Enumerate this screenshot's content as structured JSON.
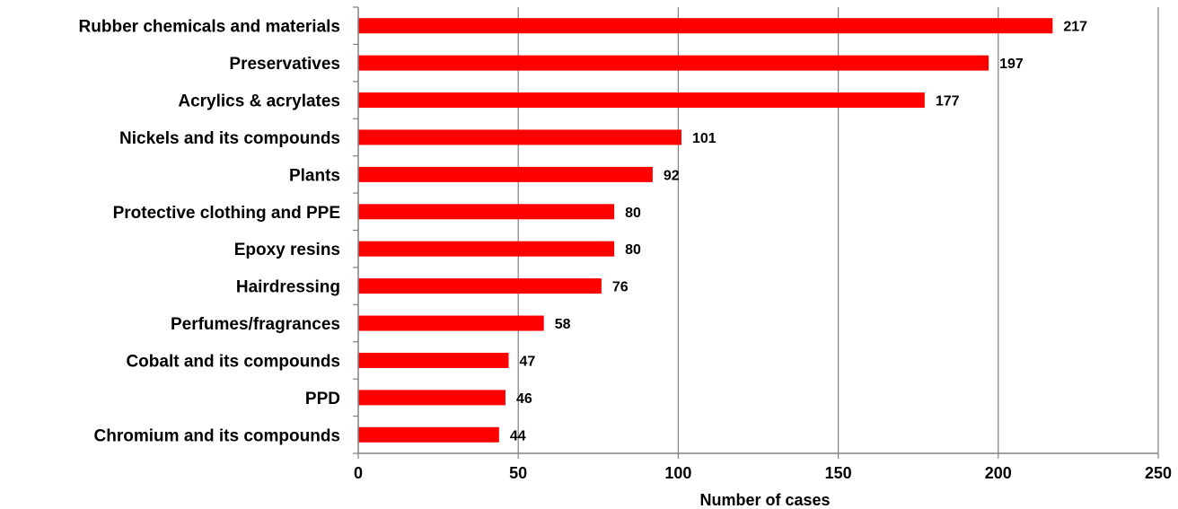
{
  "chart_data": {
    "type": "bar",
    "orientation": "horizontal",
    "categories": [
      "Rubber chemicals and materials",
      "Preservatives",
      "Acrylics & acrylates",
      "Nickels and its compounds",
      "Plants",
      "Protective clothing and PPE",
      "Epoxy resins",
      "Hairdressing",
      "Perfumes/fragrances",
      "Cobalt and its compounds",
      "PPD",
      "Chromium and its compounds"
    ],
    "values": [
      217,
      197,
      177,
      101,
      92,
      80,
      80,
      76,
      58,
      47,
      46,
      44
    ],
    "title": "",
    "xlabel": "Number of cases",
    "ylabel": "",
    "xlim": [
      0,
      250
    ],
    "xticks": [
      "0",
      "50",
      "100",
      "150",
      "200",
      "250"
    ],
    "grid": "vertical",
    "legend": "none",
    "bar_color": "#ff0000",
    "grid_color": "#808080"
  }
}
